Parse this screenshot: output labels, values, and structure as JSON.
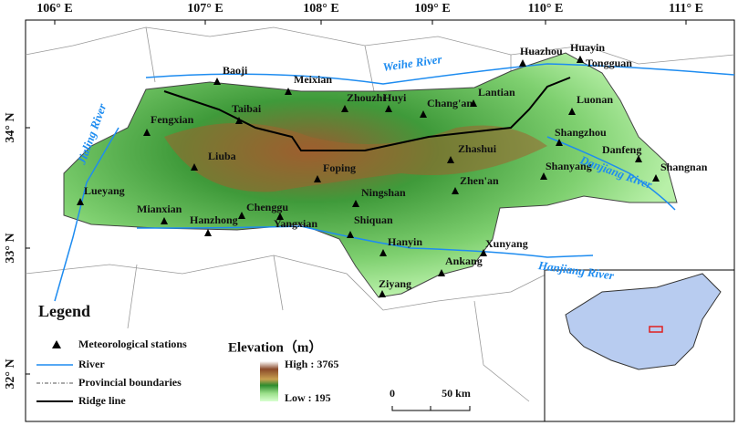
{
  "lon_labels": [
    "106° E",
    "107° E",
    "108° E",
    "109° E",
    "110° E",
    "111° E"
  ],
  "lat_labels": [
    "34° N",
    "33° N",
    "32° N"
  ],
  "stations": [
    {
      "name": "Baoji"
    },
    {
      "name": "Meixian"
    },
    {
      "name": "Zhouzhi"
    },
    {
      "name": "Huyi"
    },
    {
      "name": "Chang'an"
    },
    {
      "name": "Lantian"
    },
    {
      "name": "Huazhou"
    },
    {
      "name": "Huayin"
    },
    {
      "name": "Tongguan"
    },
    {
      "name": "Luonan"
    },
    {
      "name": "Fengxian"
    },
    {
      "name": "Taibai"
    },
    {
      "name": "Liuba"
    },
    {
      "name": "Shangzhou"
    },
    {
      "name": "Danfeng"
    },
    {
      "name": "Shangnan"
    },
    {
      "name": "Zhashui"
    },
    {
      "name": "Shanyang"
    },
    {
      "name": "Foping"
    },
    {
      "name": "Zhen'an"
    },
    {
      "name": "Lueyang"
    },
    {
      "name": "Ningshan"
    },
    {
      "name": "Mianxian"
    },
    {
      "name": "Hanzhong"
    },
    {
      "name": "Chenggu"
    },
    {
      "name": "Yangxian"
    },
    {
      "name": "Shiquan"
    },
    {
      "name": "Hanyin"
    },
    {
      "name": "Xunyang"
    },
    {
      "name": "Ankang"
    },
    {
      "name": "Ziyang"
    }
  ],
  "rivers": [
    "Weihe River",
    "Hanjiang River",
    "Jialing River",
    "Danjiang River"
  ],
  "legend": {
    "title": "Legend",
    "items": [
      "Meteorological stations",
      "River",
      "Provincial boundaries",
      "Ridge line"
    ]
  },
  "elevation": {
    "title": "Elevation（m）",
    "high": "High : 3765",
    "low": "Low : 195"
  },
  "scale_bar": {
    "start": "0",
    "end": "50 km"
  }
}
